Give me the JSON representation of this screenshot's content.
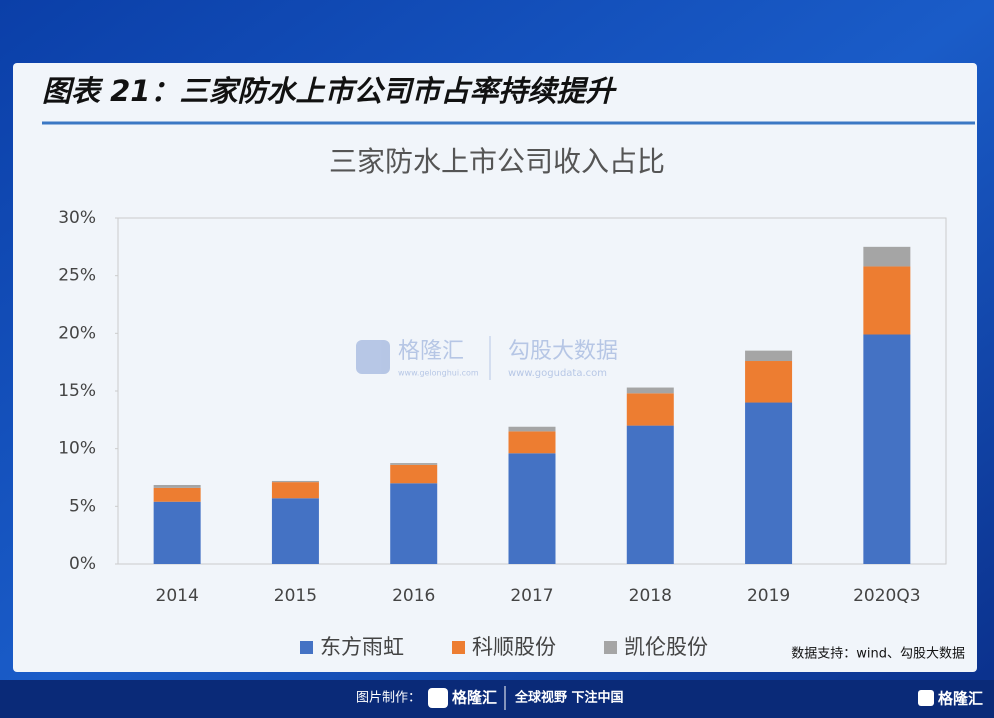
{
  "header": {
    "title": "图表 21：三家防水上市公司市占率持续提升"
  },
  "chart_data": {
    "type": "stacked_bar",
    "title": "三家防水上市公司收入占比",
    "categories": [
      "2014",
      "2015",
      "2016",
      "2017",
      "2018",
      "2019",
      "2020Q3"
    ],
    "series": [
      {
        "name": "东方雨虹",
        "color": "#4472c4",
        "values": [
          5.4,
          5.7,
          7.0,
          9.6,
          12.0,
          14.0,
          19.9
        ]
      },
      {
        "name": "科顺股份",
        "color": "#ed7d31",
        "values": [
          1.2,
          1.4,
          1.6,
          1.9,
          2.8,
          3.6,
          5.9
        ]
      },
      {
        "name": "凯伦股份",
        "color": "#a5a5a5",
        "values": [
          0.25,
          0.1,
          0.15,
          0.4,
          0.5,
          0.9,
          1.7
        ]
      }
    ],
    "ylim": [
      0,
      30
    ],
    "yticks": [
      {
        "value": 0,
        "label": "0%"
      },
      {
        "value": 5,
        "label": "5%"
      },
      {
        "value": 10,
        "label": "10%"
      },
      {
        "value": 15,
        "label": "15%"
      },
      {
        "value": 20,
        "label": "20%"
      },
      {
        "value": 25,
        "label": "25%"
      },
      {
        "value": 30,
        "label": "30%"
      }
    ],
    "legend": "bottom"
  },
  "source": "数据支持：wind、勾股大数据",
  "watermark": {
    "brand": "格隆汇",
    "brand_url": "www.gelonghui.com",
    "partner": "勾股大数据",
    "partner_url": "www.gogudata.com"
  },
  "footer": {
    "made_by": "图片制作：",
    "brand": "格隆汇",
    "slogan": "全球视野 下注中国",
    "corner": "格隆汇"
  }
}
